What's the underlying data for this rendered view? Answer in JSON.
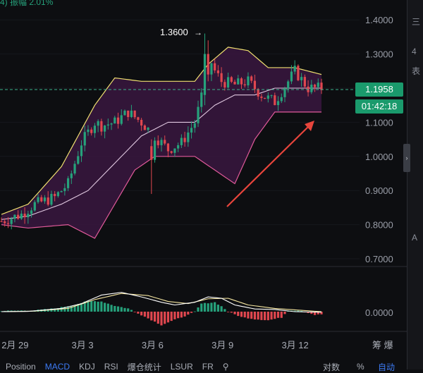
{
  "header": {
    "info_text": "4) 振幅 2.01%"
  },
  "price_labels": {
    "current_price": "1.1958",
    "countdown": "01:42:18",
    "high_marker": "1.3600"
  },
  "axis_units": {
    "dates_right_label": "筹 爆"
  },
  "toolbar": {
    "items": [
      "Position",
      "MACD",
      "KDJ",
      "RSI",
      "爆仓统计",
      "LSUR",
      "FR",
      "⚲"
    ],
    "active_item": "MACD",
    "log_label": "对数",
    "percent_label": "%",
    "auto_label": "自动"
  },
  "right_strip": {
    "glyphs": [
      "三",
      "4",
      "表",
      "A"
    ]
  },
  "colors": {
    "up": "#26a17b",
    "down": "#e0474f",
    "band_fill": "#3a1640",
    "band_line": "#e05a9a",
    "mid_line": "#e0c8e0",
    "macd_line": "#ffffff",
    "signal_line": "#f5e6a0",
    "accent": "#3d7bf5",
    "arrow": "#e8453c"
  },
  "chart_data": {
    "type": "candlestick",
    "price_axis": {
      "ticks": [
        1.4,
        1.3,
        1.2,
        1.1,
        1.0,
        0.9,
        0.8,
        0.7
      ],
      "tick_labels": [
        "1.4000",
        "1.3000",
        "1.2000",
        "1.1000",
        "1.0000",
        "0.9000",
        "0.8000",
        "0.7000"
      ],
      "range": [
        0.66,
        1.43
      ]
    },
    "macd_axis": {
      "ticks": [
        0.0
      ],
      "tick_labels": [
        "0.0000"
      ]
    },
    "x_labels": [
      "2月 29",
      "3月 3",
      "3月 6",
      "3月 9",
      "3月 12"
    ],
    "x_label_index": [
      3,
      24,
      45,
      66,
      87
    ],
    "bollinger": {
      "upper_anchors": [
        [
          0,
          0.83
        ],
        [
          8,
          0.86
        ],
        [
          18,
          0.97
        ],
        [
          28,
          1.15
        ],
        [
          34,
          1.23
        ],
        [
          42,
          1.22
        ],
        [
          58,
          1.22
        ],
        [
          62,
          1.27
        ],
        [
          68,
          1.32
        ],
        [
          74,
          1.31
        ],
        [
          80,
          1.26
        ],
        [
          88,
          1.26
        ],
        [
          96,
          1.24
        ]
      ],
      "lower_anchors": [
        [
          0,
          0.8
        ],
        [
          8,
          0.79
        ],
        [
          20,
          0.8
        ],
        [
          28,
          0.76
        ],
        [
          34,
          0.86
        ],
        [
          40,
          0.96
        ],
        [
          46,
          1.0
        ],
        [
          52,
          1.0
        ],
        [
          58,
          1.0
        ],
        [
          64,
          0.96
        ],
        [
          70,
          0.92
        ],
        [
          76,
          1.05
        ],
        [
          82,
          1.13
        ],
        [
          90,
          1.13
        ],
        [
          96,
          1.13
        ]
      ],
      "mid_anchors": [
        [
          0,
          0.815
        ],
        [
          8,
          0.825
        ],
        [
          18,
          0.86
        ],
        [
          26,
          0.9
        ],
        [
          34,
          0.98
        ],
        [
          42,
          1.06
        ],
        [
          50,
          1.1
        ],
        [
          58,
          1.1
        ],
        [
          64,
          1.15
        ],
        [
          70,
          1.18
        ],
        [
          76,
          1.18
        ],
        [
          82,
          1.2
        ],
        [
          90,
          1.2
        ],
        [
          96,
          1.2
        ]
      ]
    },
    "candle_anchors": [
      [
        0,
        0.81
      ],
      [
        6,
        0.83
      ],
      [
        10,
        0.86
      ],
      [
        16,
        0.88
      ],
      [
        20,
        0.92
      ],
      [
        24,
        1.04
      ],
      [
        28,
        1.1
      ],
      [
        30,
        1.09
      ],
      [
        34,
        1.1
      ],
      [
        38,
        1.13
      ],
      [
        42,
        1.1
      ],
      [
        46,
        1.06
      ],
      [
        50,
        1.02
      ],
      [
        54,
        1.04
      ],
      [
        58,
        1.1
      ],
      [
        60,
        1.17
      ],
      [
        61,
        1.28
      ],
      [
        62,
        1.3
      ],
      [
        64,
        1.25
      ],
      [
        66,
        1.22
      ],
      [
        70,
        1.21
      ],
      [
        74,
        1.22
      ],
      [
        78,
        1.18
      ],
      [
        82,
        1.16
      ],
      [
        86,
        1.22
      ],
      [
        88,
        1.25
      ],
      [
        92,
        1.2
      ],
      [
        96,
        1.2
      ]
    ],
    "special_candles": [
      {
        "index": 61,
        "open": 1.18,
        "close": 1.3,
        "low": 1.15,
        "high": 1.36
      },
      {
        "index": 62,
        "open": 1.3,
        "close": 1.24,
        "low": 1.22,
        "high": 1.34
      },
      {
        "index": 45,
        "open": 1.03,
        "close": 0.99,
        "low": 0.89,
        "high": 1.05
      }
    ],
    "macd_anchors": [
      [
        0,
        0.0
      ],
      [
        8,
        0.01
      ],
      [
        18,
        0.12
      ],
      [
        24,
        0.3
      ],
      [
        30,
        0.62
      ],
      [
        36,
        0.72
      ],
      [
        42,
        0.55
      ],
      [
        48,
        0.35
      ],
      [
        52,
        0.25
      ],
      [
        58,
        0.35
      ],
      [
        62,
        0.55
      ],
      [
        66,
        0.5
      ],
      [
        70,
        0.25
      ],
      [
        76,
        0.1
      ],
      [
        82,
        0.08
      ],
      [
        88,
        0.0
      ],
      [
        96,
        -0.02
      ]
    ],
    "signal_anchors": [
      [
        0,
        0.0
      ],
      [
        10,
        0.02
      ],
      [
        20,
        0.12
      ],
      [
        28,
        0.45
      ],
      [
        36,
        0.68
      ],
      [
        44,
        0.6
      ],
      [
        50,
        0.38
      ],
      [
        56,
        0.3
      ],
      [
        62,
        0.48
      ],
      [
        68,
        0.5
      ],
      [
        74,
        0.25
      ],
      [
        82,
        0.12
      ],
      [
        90,
        0.05
      ],
      [
        96,
        0.0
      ]
    ],
    "hist_anchors": [
      [
        0,
        0.03
      ],
      [
        10,
        0.05
      ],
      [
        16,
        0.12
      ],
      [
        22,
        0.25
      ],
      [
        26,
        0.4
      ],
      [
        30,
        0.38
      ],
      [
        34,
        0.22
      ],
      [
        38,
        0.12
      ],
      [
        40,
        0.0
      ],
      [
        44,
        -0.25
      ],
      [
        48,
        -0.5
      ],
      [
        52,
        -0.3
      ],
      [
        56,
        -0.12
      ],
      [
        58,
        0.0
      ],
      [
        60,
        0.3
      ],
      [
        64,
        0.35
      ],
      [
        66,
        0.2
      ],
      [
        68,
        0.0
      ],
      [
        72,
        -0.2
      ],
      [
        76,
        -0.28
      ],
      [
        80,
        -0.32
      ],
      [
        84,
        -0.22
      ],
      [
        86,
        0.05
      ],
      [
        90,
        0.04
      ],
      [
        94,
        -0.12
      ],
      [
        96,
        -0.1
      ]
    ],
    "current_value": 1.1958,
    "high_value": 1.36
  }
}
